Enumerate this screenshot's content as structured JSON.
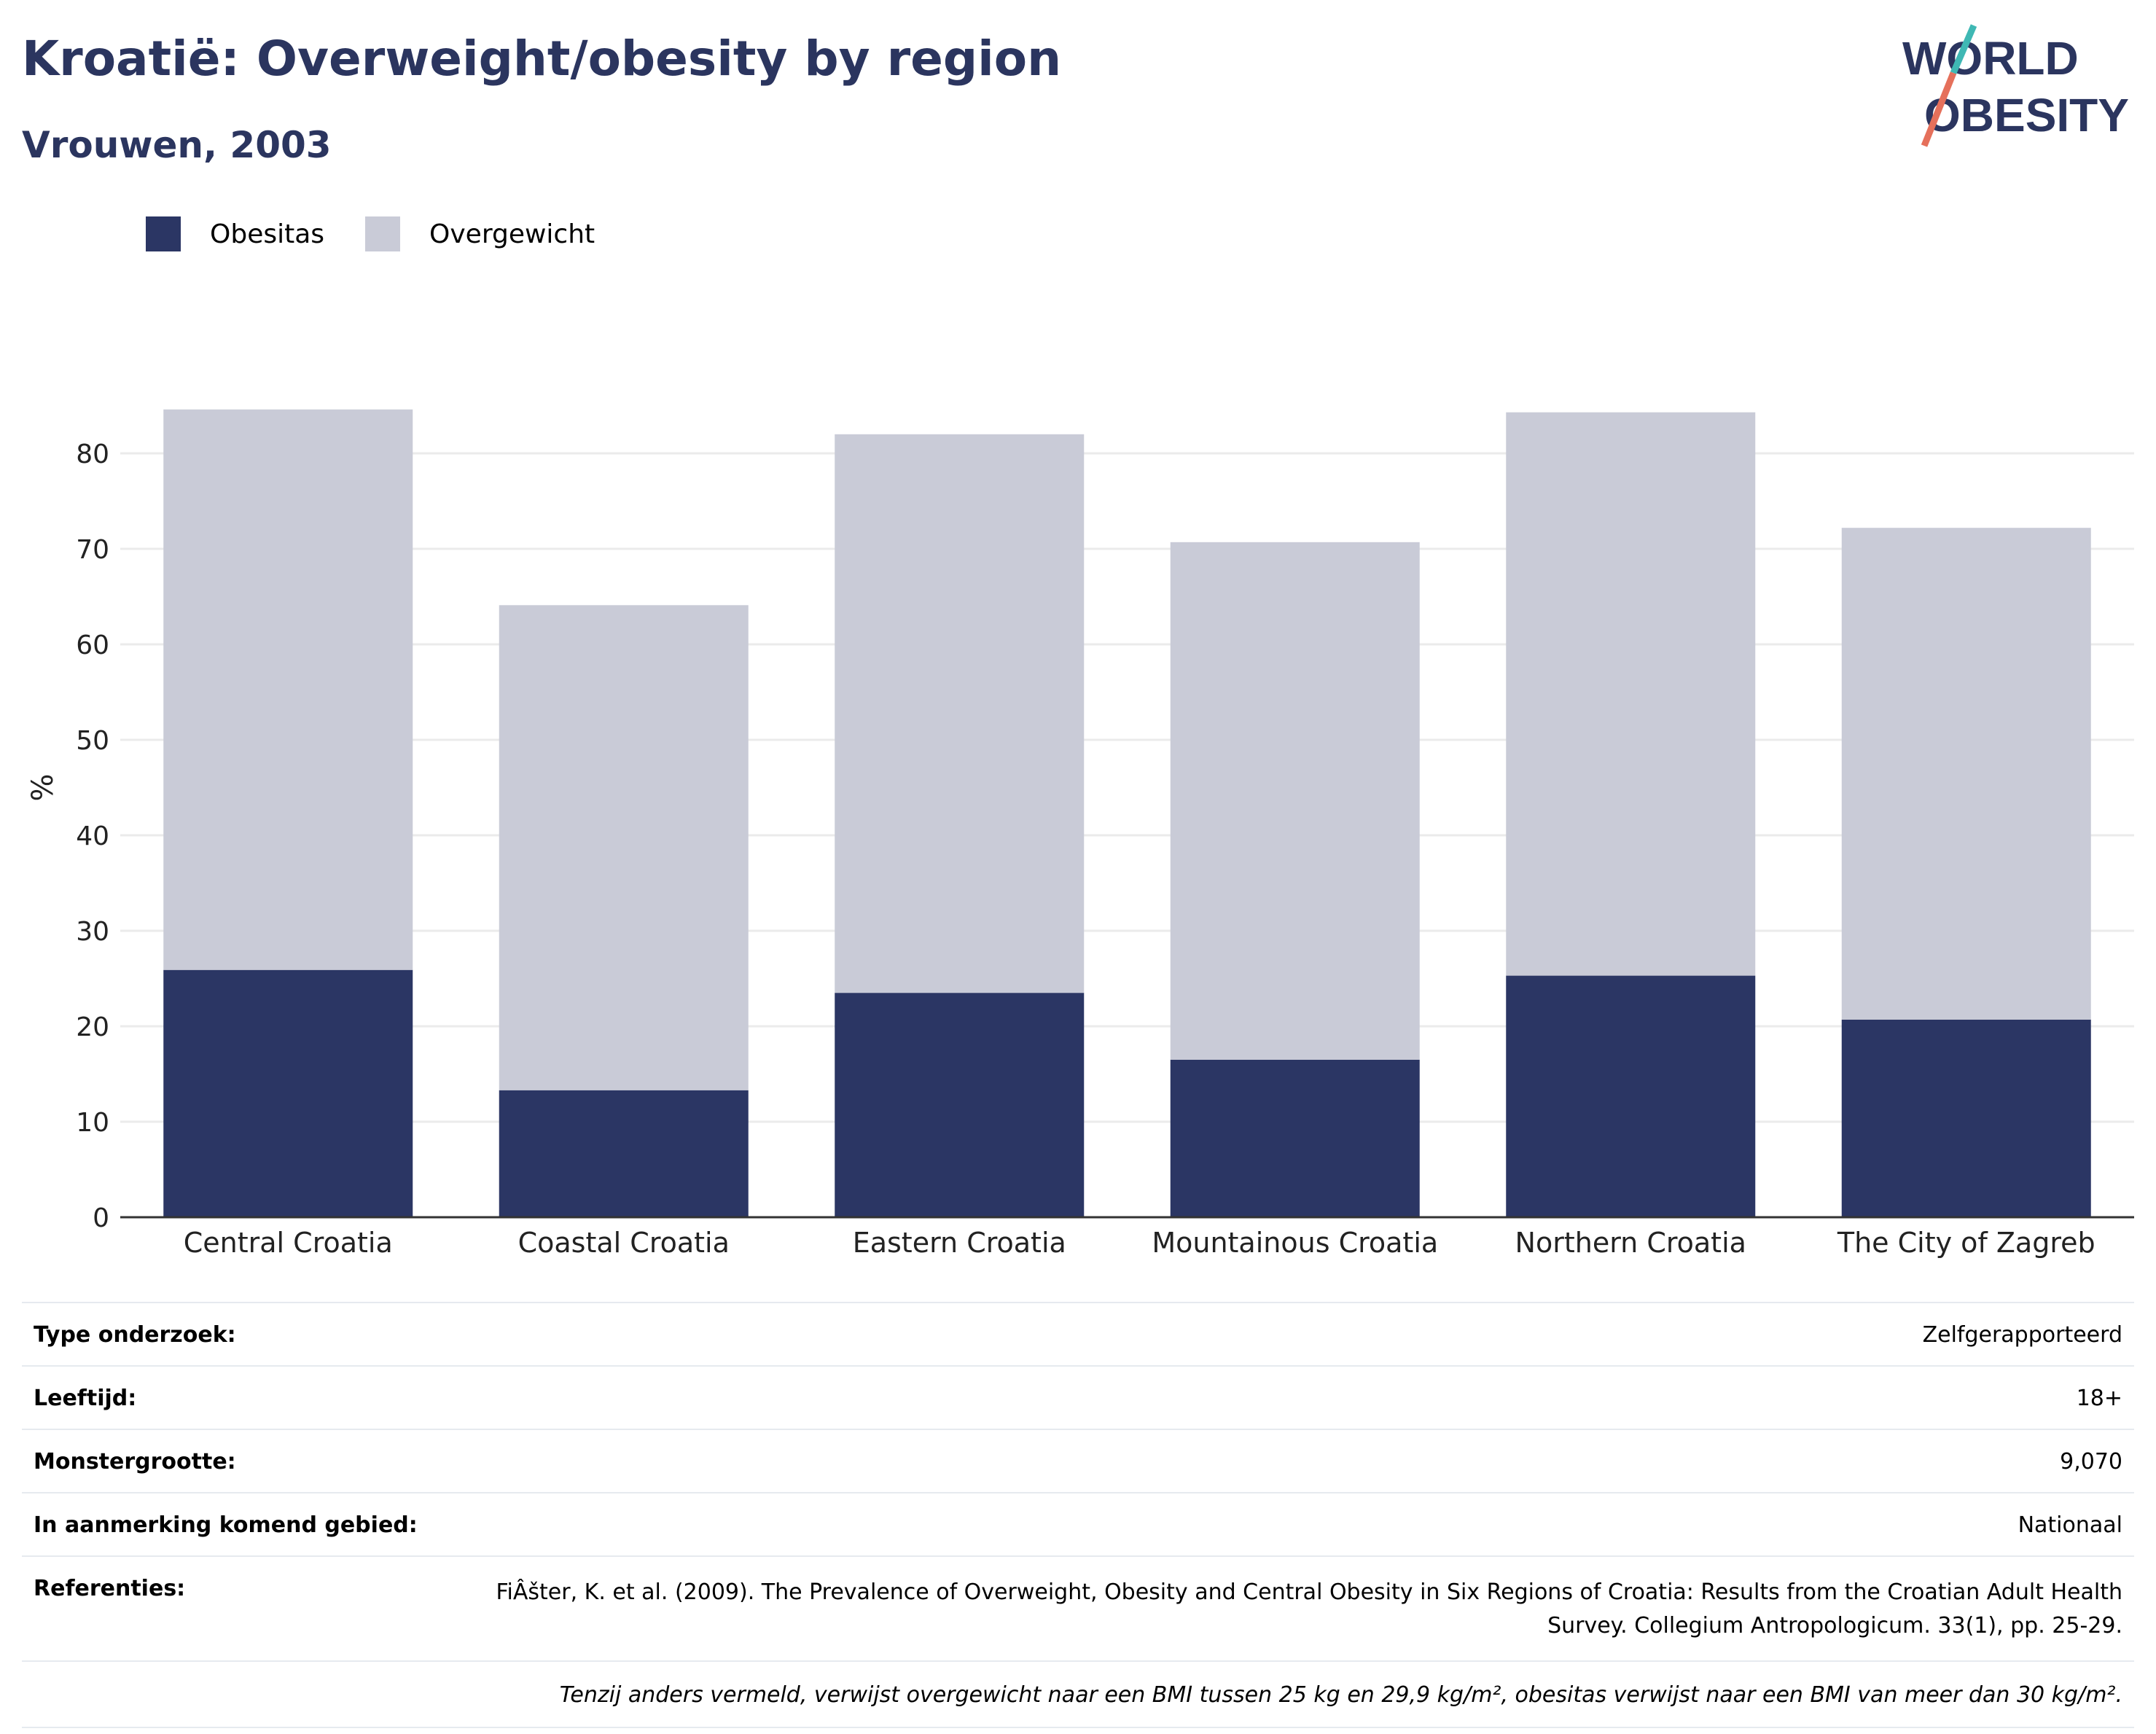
{
  "header": {
    "title": "Kroatië: Overweight/obesity by region",
    "subtitle": "Vrouwen, 2003",
    "logo_line1": "WORLD",
    "logo_line2": "OBESITY"
  },
  "legend": {
    "items": [
      {
        "label": "Obesitas",
        "color": "#2b3664"
      },
      {
        "label": "Overgewicht",
        "color": "#c9cbd7"
      }
    ]
  },
  "chart_data": {
    "type": "bar",
    "stacked": true,
    "categories": [
      "Central Croatia",
      "Coastal Croatia",
      "Eastern Croatia",
      "Mountainous Croatia",
      "Northern Croatia",
      "The City of Zagreb"
    ],
    "series": [
      {
        "name": "Obesitas",
        "color": "#2b3664",
        "values": [
          25.9,
          13.3,
          23.5,
          16.5,
          25.3,
          20.7
        ]
      },
      {
        "name": "Overgewicht",
        "color": "#c9cbd7",
        "values": [
          58.7,
          50.8,
          58.5,
          54.2,
          59.0,
          51.5
        ]
      }
    ],
    "ylabel": "%",
    "ylim": [
      0,
      90
    ],
    "yticks": [
      0,
      10,
      20,
      30,
      40,
      50,
      60,
      70,
      80
    ],
    "grid": true
  },
  "info": {
    "rows": [
      {
        "key": "Type onderzoek:",
        "value": "Zelfgerapporteerd"
      },
      {
        "key": "Leeftijd:",
        "value": "18+"
      },
      {
        "key": "Monstergrootte:",
        "value": "9,070"
      },
      {
        "key": "In aanmerking komend gebied:",
        "value": "Nationaal"
      }
    ],
    "references_key": "Referenties:",
    "references_value": "FiÂšter, K. et al. (2009). The Prevalence of Overweight, Obesity and Central Obesity in Six Regions of Croatia: Results from the Croatian Adult Health Survey. Collegium Antropologicum. 33(1), pp. 25-29.",
    "note": "Tenzij anders vermeld, verwijst overgewicht naar een BMI tussen 25 kg en 29,9 kg/m², obesitas verwijst naar een BMI van meer dan 30 kg/m²."
  }
}
